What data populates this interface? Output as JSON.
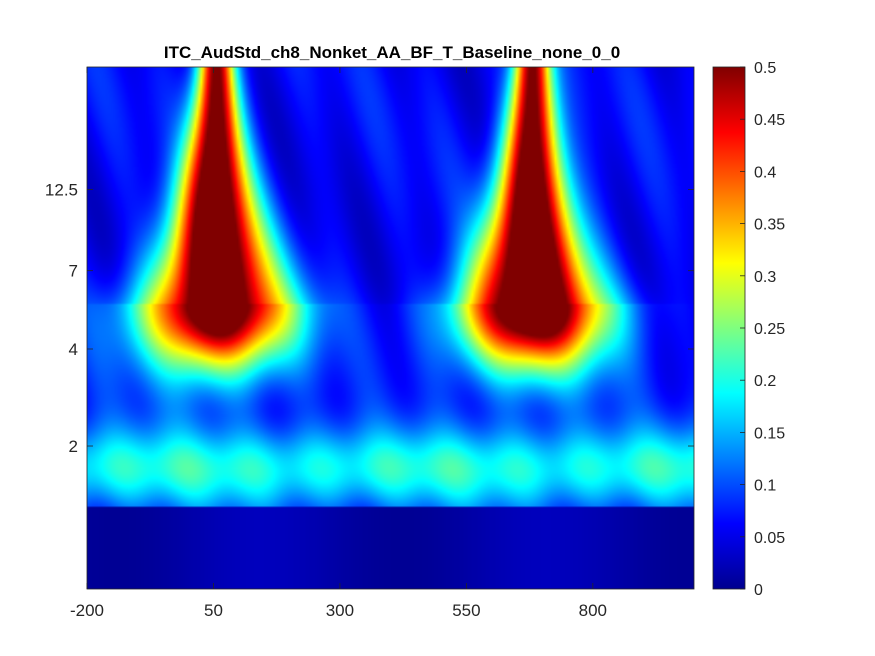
{
  "chart_data": {
    "type": "heatmap",
    "title": "ITC_AudStd_ch8_Nonket_AA_BF_T_Baseline_none_0_0",
    "xlabel": "",
    "ylabel": "",
    "xlim": [
      -200,
      1000
    ],
    "x_ticks": [
      -200,
      50,
      300,
      550,
      800
    ],
    "x_tick_labels": [
      "-200",
      "50",
      "300",
      "550",
      "800"
    ],
    "y_scale": "log",
    "ylim": [
      0.72,
      30
    ],
    "y_ticks": [
      2,
      4,
      7,
      12.5
    ],
    "y_tick_labels": [
      "2",
      "4",
      "7",
      "12.5"
    ],
    "colormap": "jet",
    "clim": [
      0,
      0.5
    ],
    "colorbar_ticks": [
      0,
      0.05,
      0.1,
      0.15,
      0.2,
      0.25,
      0.3,
      0.35,
      0.4,
      0.45,
      0.5
    ],
    "colorbar_tick_labels": [
      "0",
      "0.05",
      "0.1",
      "0.15",
      "0.2",
      "0.25",
      "0.3",
      "0.35",
      "0.4",
      "0.45",
      "0.5"
    ],
    "grid": false,
    "features": [
      {
        "kind": "blob",
        "x_center": 55,
        "x_halfwidth": 150,
        "y_peak": 5.5,
        "peak_value": 0.5
      },
      {
        "kind": "blob",
        "x_center": 680,
        "x_halfwidth": 150,
        "y_peak": 5.5,
        "peak_value": 0.5
      },
      {
        "kind": "band",
        "y_center": 1.7,
        "value": 0.2
      },
      {
        "kind": "floor",
        "y_below": 1.3,
        "value": 0.02
      }
    ]
  }
}
